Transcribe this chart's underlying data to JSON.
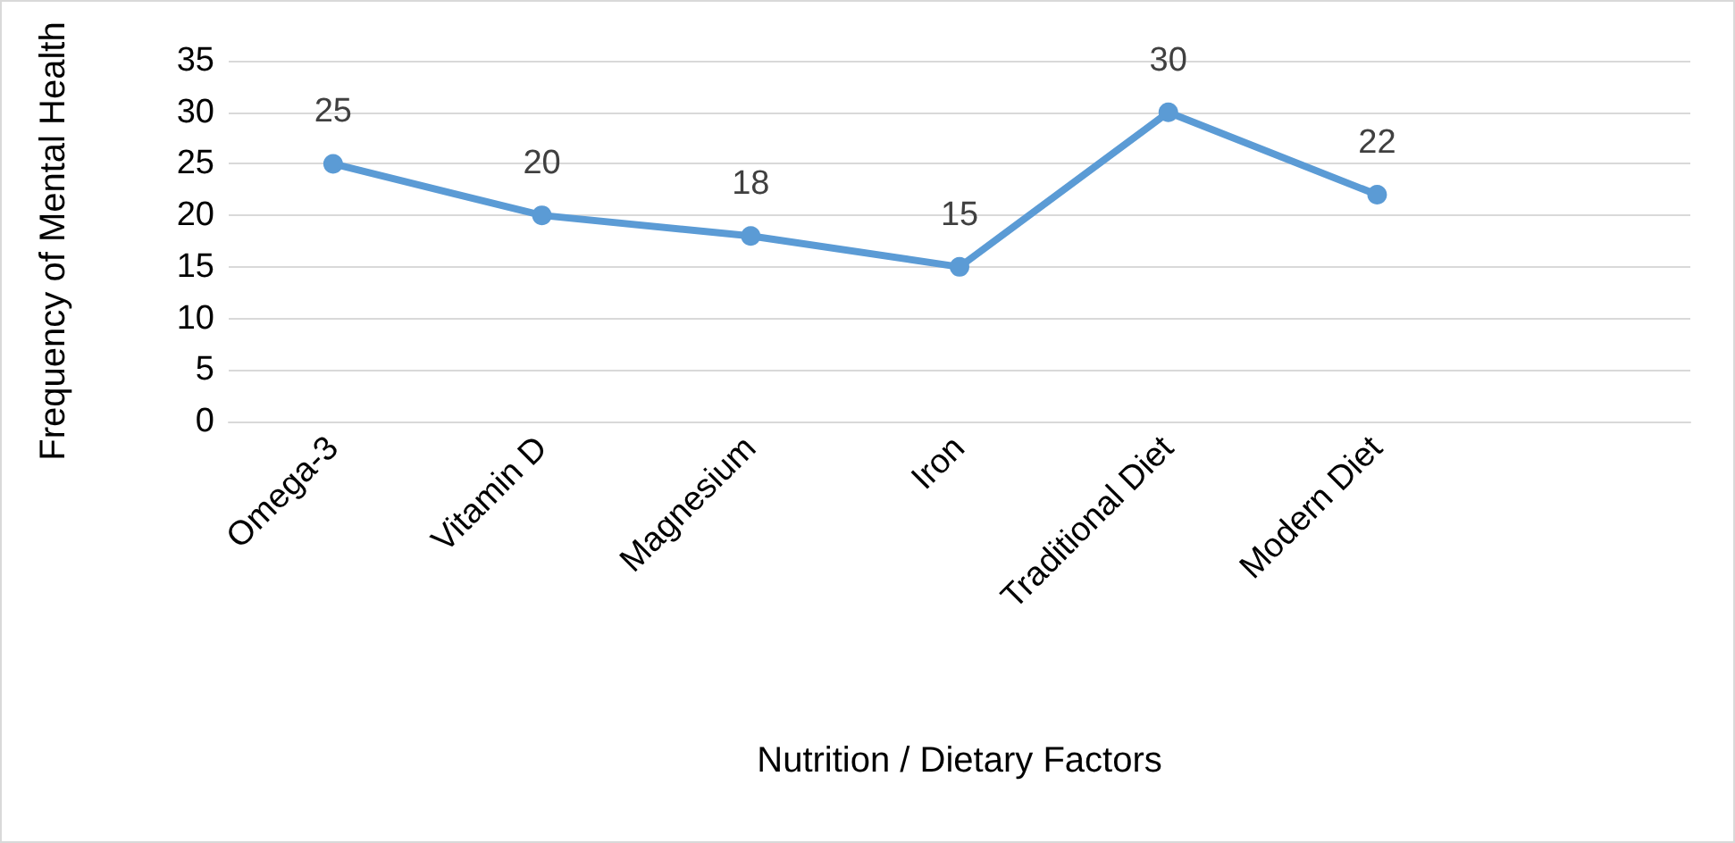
{
  "chart_data": {
    "type": "line",
    "xlabel": "Nutrition / Dietary Factors",
    "ylabel": "Frequency of Mental Health",
    "categories": [
      "Omega-3",
      "Vitamin D",
      "Magnesium",
      "Iron",
      "Traditional Diet",
      "Modern Diet",
      null
    ],
    "series": [
      {
        "color": "#5b9bd5",
        "values": [
          25,
          20,
          18,
          15,
          30,
          22,
          null
        ]
      }
    ],
    "ylim": [
      0,
      35
    ],
    "yticks": [
      0,
      5,
      10,
      15,
      20,
      25,
      30,
      35
    ],
    "grid": "y",
    "marker": "circle",
    "line_style": "solid",
    "data_labels": true
  }
}
